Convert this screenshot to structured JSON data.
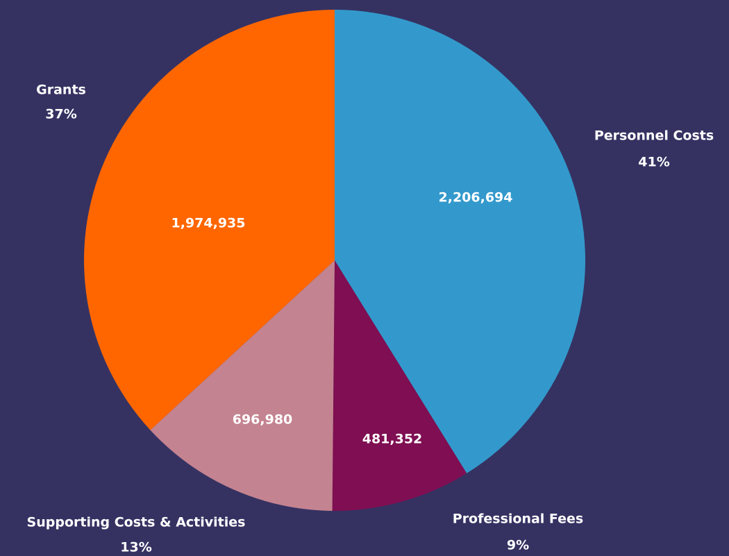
{
  "chart_data": {
    "type": "pie",
    "categories": [
      "Personnel Costs",
      "Professional Fees",
      "Supporting Costs & Activities",
      "Grants"
    ],
    "values": [
      2206694,
      481352,
      696980,
      1974935
    ],
    "value_labels": [
      "2,206,694",
      "481,352",
      "696,980",
      "1,974,935"
    ],
    "percentage_labels": [
      "41%",
      "9%",
      "13%",
      "37%"
    ],
    "colors": [
      "#3399cc",
      "#7f0e52",
      "#c48390",
      "#ff6600"
    ]
  }
}
